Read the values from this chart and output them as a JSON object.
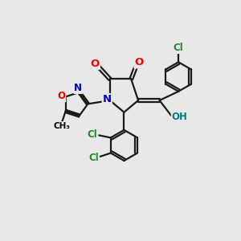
{
  "bg_color": "#e8e8e8",
  "bond_color": "#1a1a1a",
  "bond_width": 1.6,
  "atom_colors": {
    "O": "#ff0000",
    "N": "#0000cc",
    "Cl": "#228b22",
    "OH": "#008080"
  }
}
